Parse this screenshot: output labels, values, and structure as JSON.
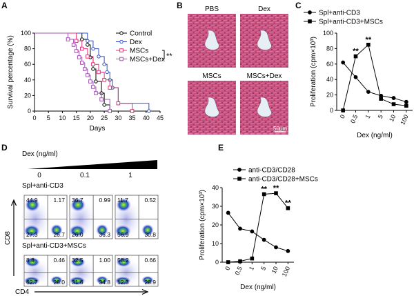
{
  "chart_data": [
    {
      "type": "survival",
      "panel": "A",
      "ylabel": "Survival percentage (%)",
      "xlabel": "Days",
      "xlim": [
        0,
        45
      ],
      "xticks": [
        0,
        5,
        10,
        15,
        20,
        25,
        30,
        35,
        40,
        45
      ],
      "ylim": [
        0,
        100
      ],
      "yticks": [
        0,
        20,
        40,
        60,
        80,
        100
      ],
      "annotation": "**",
      "series": [
        {
          "name": "Control",
          "color": "#000000",
          "marker": "circle",
          "x": [
            0,
            17,
            19,
            20,
            21,
            22,
            24,
            25,
            27
          ],
          "values": [
            100,
            92,
            85,
            69,
            54,
            38,
            23,
            8,
            0
          ]
        },
        {
          "name": "Dex",
          "color": "#2f4fc4",
          "marker": "circle",
          "x": [
            0,
            19,
            21,
            23,
            25,
            26,
            27,
            28,
            30,
            41
          ],
          "values": [
            100,
            90,
            80,
            70,
            60,
            50,
            40,
            30,
            10,
            0
          ]
        },
        {
          "name": "MSCs",
          "color": "#e0307a",
          "marker": "square",
          "x": [
            0,
            15,
            17,
            19,
            21,
            23,
            25,
            27,
            30,
            35
          ],
          "values": [
            100,
            90,
            80,
            70,
            60,
            50,
            40,
            30,
            10,
            0
          ]
        },
        {
          "name": "MSCs+Dex",
          "color": "#a050b4",
          "marker": "square",
          "x": [
            0,
            12,
            14,
            15,
            16,
            17,
            18,
            19,
            20,
            21,
            22,
            24,
            27
          ],
          "values": [
            100,
            92,
            85,
            77,
            69,
            62,
            54,
            46,
            38,
            31,
            23,
            15,
            0
          ]
        }
      ]
    },
    {
      "type": "line",
      "panel": "C",
      "ylabel": "Proliferation (cpm×10³)",
      "xlabel": "Dex (ng/ml)",
      "categories": [
        "0",
        "0.5",
        "1",
        "5",
        "10",
        "100"
      ],
      "ylim": [
        0,
        100
      ],
      "yticks": [
        0,
        20,
        40,
        60,
        80,
        100
      ],
      "series": [
        {
          "name": "Spl+anti-CD3",
          "color": "#000000",
          "marker": "circle",
          "values": [
            62,
            43,
            24,
            19,
            16,
            11
          ]
        },
        {
          "name": "Spl+anti-CD3+MSCs",
          "color": "#000000",
          "marker": "square",
          "values": [
            0,
            70,
            85,
            15,
            8,
            6
          ]
        }
      ],
      "annotations": [
        {
          "text": "**",
          "x": "0.5"
        },
        {
          "text": "**",
          "x": "1"
        }
      ]
    },
    {
      "type": "line",
      "panel": "E",
      "ylabel": "Proliferation (cpm×10³)",
      "xlabel": "Dex (ng/ml)",
      "categories": [
        "0",
        "0.5",
        "1",
        "5",
        "10",
        "100"
      ],
      "ylim": [
        0,
        40
      ],
      "yticks": [
        0,
        10,
        20,
        30,
        40
      ],
      "series": [
        {
          "name": "anti-CD3/CD28",
          "color": "#000000",
          "marker": "circle",
          "values": [
            26.5,
            18,
            16.5,
            12,
            8,
            6
          ]
        },
        {
          "name": "anti-CD3/CD28+MSCs",
          "color": "#000000",
          "marker": "square",
          "values": [
            0,
            0.5,
            2,
            36.5,
            37,
            29
          ]
        }
      ],
      "annotations": [
        {
          "text": "**",
          "x": "5"
        },
        {
          "text": "**",
          "x": "10"
        },
        {
          "text": "**",
          "x": "100"
        }
      ]
    }
  ],
  "histology": {
    "panel": "B",
    "tiles": [
      "PBS",
      "Dex",
      "MSCs",
      "MSCs+Dex"
    ],
    "scale_bar": "50μm"
  },
  "flow": {
    "panel": "D",
    "axis_title": "Dex (ng/ml)",
    "doses": [
      "0",
      "0.1",
      "1"
    ],
    "y_label": "CD8",
    "x_label": "CD4",
    "rows": [
      {
        "label": "Spl+anti-CD3",
        "plots": [
          [
            "44.9",
            "1.17",
            "27.3",
            "26.7"
          ],
          [
            "36.7",
            "0.99",
            "26.0",
            "36.3"
          ],
          [
            "11.7",
            "0.52",
            "56.9",
            "30.8"
          ]
        ]
      },
      {
        "label": "Spl+anti-CD3+MSCs",
        "plots": [
          [
            "8.8",
            "0.46",
            "62.7",
            "28.0"
          ],
          [
            "32.5",
            "1.00",
            "31.6",
            "34.8"
          ],
          [
            "58.2",
            "0.66",
            "12.3",
            "28.9"
          ]
        ]
      }
    ]
  }
}
